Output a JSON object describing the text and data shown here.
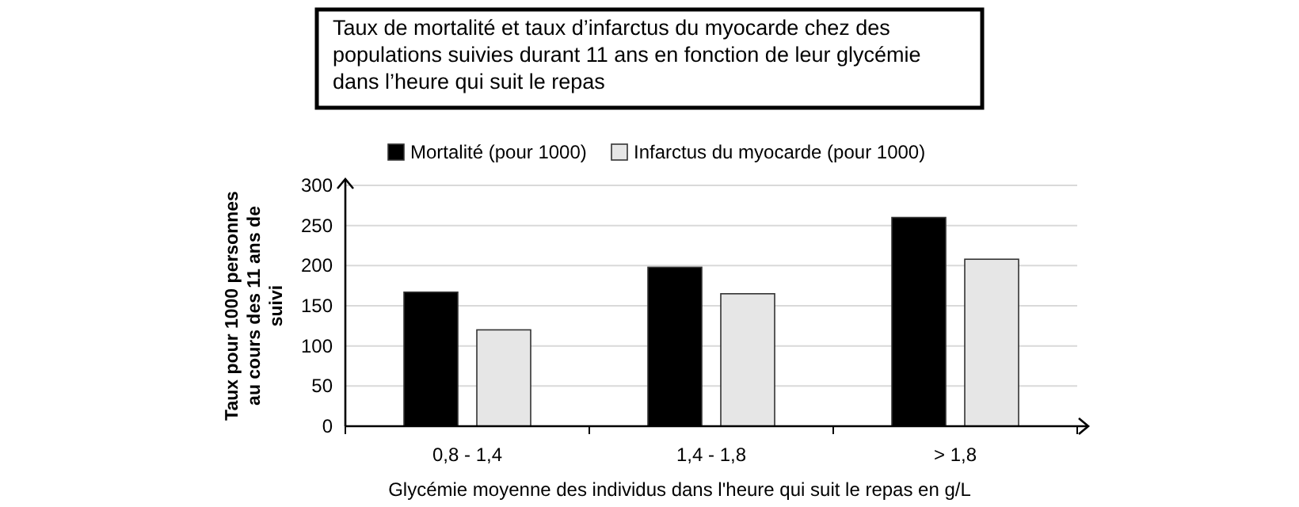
{
  "chart_data": {
    "type": "bar",
    "title": "Taux de mortalité et taux d’infarctus du myocarde chez des populations suivies durant 11 ans en fonction de leur glycémie dans l’heure qui suit le repas",
    "xlabel": "Glycémie moyenne des individus dans l'heure qui suit le repas en g/L",
    "ylabel": "Taux pour 1000 personnes au cours des 11 ans de suivi",
    "categories": [
      "0,8 - 1,4",
      "1,4 - 1,8",
      "> 1,8"
    ],
    "series": [
      {
        "name": "Mortalité (pour 1000)",
        "color": "#000000",
        "values": [
          167,
          198,
          260
        ]
      },
      {
        "name": "Infarctus du myocarde (pour 1000)",
        "color": "#e6e6e6",
        "values": [
          120,
          165,
          208
        ]
      }
    ],
    "ylim": [
      0,
      300
    ],
    "yticks": [
      0,
      50,
      100,
      150,
      200,
      250,
      300
    ],
    "grid": "y",
    "legend": "top"
  }
}
